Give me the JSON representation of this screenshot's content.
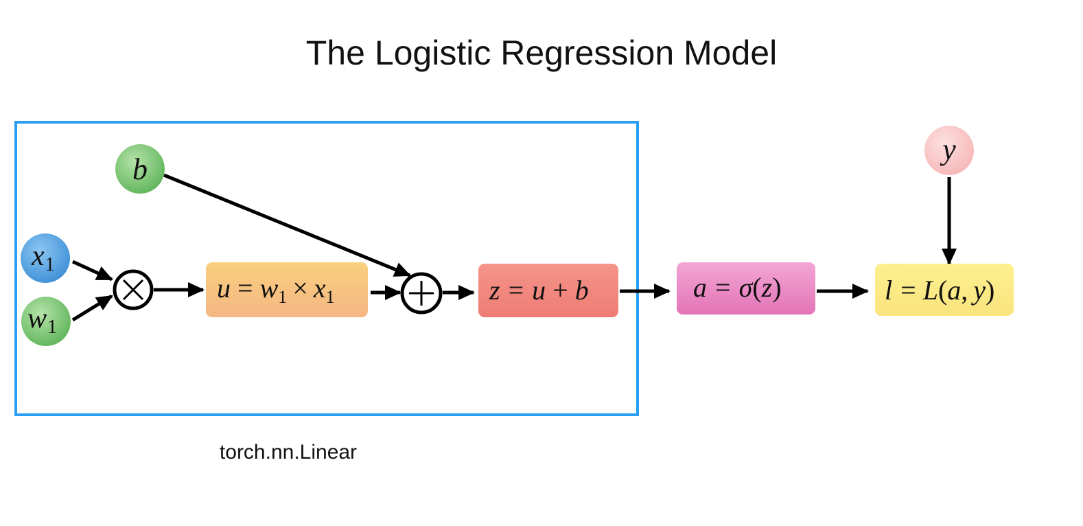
{
  "title": "The Logistic Regression Model",
  "linear_box": {
    "caption": "torch.nn.Linear",
    "border_color": "#2a9df4"
  },
  "inputs": {
    "x1": {
      "var": "x",
      "sub": "1",
      "color": "#4fa3e0"
    },
    "w1": {
      "var": "w",
      "sub": "1",
      "color": "#7cc576"
    },
    "b": {
      "var": "b",
      "color": "#7cc576"
    },
    "y": {
      "var": "y",
      "color": "#f9c1c1"
    }
  },
  "operators": {
    "multiply": "⊗",
    "add": "⊕"
  },
  "nodes": {
    "u": {
      "lhs": "u",
      "eq": "=",
      "w": "w",
      "w_sub": "1",
      "times": "×",
      "x": "x",
      "x_sub": "1",
      "color": "#f7c37a"
    },
    "z": {
      "lhs": "z",
      "eq": "=",
      "u": "u",
      "plus": "+",
      "b": "b",
      "color": "#f2837a"
    },
    "a": {
      "lhs": "a",
      "eq": "=",
      "sigma": "σ",
      "open": "(",
      "z": "z",
      "close": ")",
      "color": "#e57ab7"
    },
    "l": {
      "lhs": "l",
      "eq": "=",
      "L": "L",
      "open": "(",
      "a": "a",
      "comma": ",",
      "y": "y",
      "close": ")",
      "color": "#fbe985"
    }
  }
}
